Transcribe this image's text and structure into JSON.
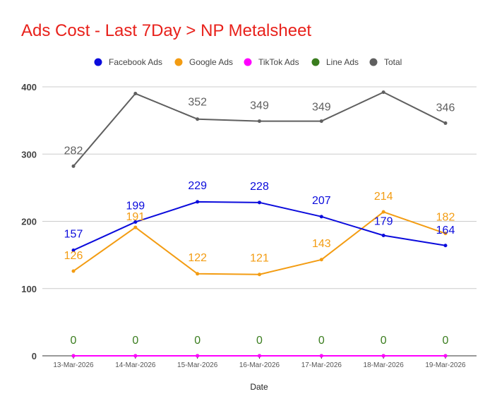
{
  "chart_data": {
    "type": "line",
    "title": "Ads Cost - Last 7Day > NP Metalsheet",
    "xlabel": "Date",
    "ylabel": "",
    "ylim": [
      0,
      400
    ],
    "yticks": [
      0,
      100,
      200,
      300,
      400
    ],
    "grid": true,
    "legend_position": "top",
    "categories": [
      "13-Mar-2026",
      "14-Mar-2026",
      "15-Mar-2026",
      "16-Mar-2026",
      "17-Mar-2026",
      "18-Mar-2026",
      "19-Mar-2026"
    ],
    "series": [
      {
        "name": "Facebook Ads",
        "color": "#0b0bdc",
        "values": [
          157,
          199,
          229,
          228,
          207,
          179,
          164
        ],
        "labels": [
          "157",
          "199",
          "229",
          "228",
          "207",
          "179",
          "164"
        ]
      },
      {
        "name": "Google Ads",
        "color": "#f39c12",
        "values": [
          126,
          191,
          122,
          121,
          143,
          214,
          182
        ],
        "labels": [
          "126",
          "191",
          "122",
          "121",
          "143",
          "214",
          "182"
        ]
      },
      {
        "name": "TikTok Ads",
        "color": "#ff00ff",
        "values": [
          0,
          0,
          0,
          0,
          0,
          0,
          0
        ],
        "labels": []
      },
      {
        "name": "Line Ads",
        "color": "#3a7d1e",
        "values": [
          0,
          0,
          0,
          0,
          0,
          0,
          0
        ],
        "labels": [
          "0",
          "0",
          "0",
          "0",
          "0",
          "0",
          "0"
        ]
      },
      {
        "name": "Total",
        "color": "#5f5f5f",
        "values": [
          282,
          390,
          352,
          349,
          349,
          392,
          346
        ],
        "labels": [
          "282",
          "",
          "352",
          "349",
          "349",
          "",
          "346"
        ]
      }
    ]
  }
}
